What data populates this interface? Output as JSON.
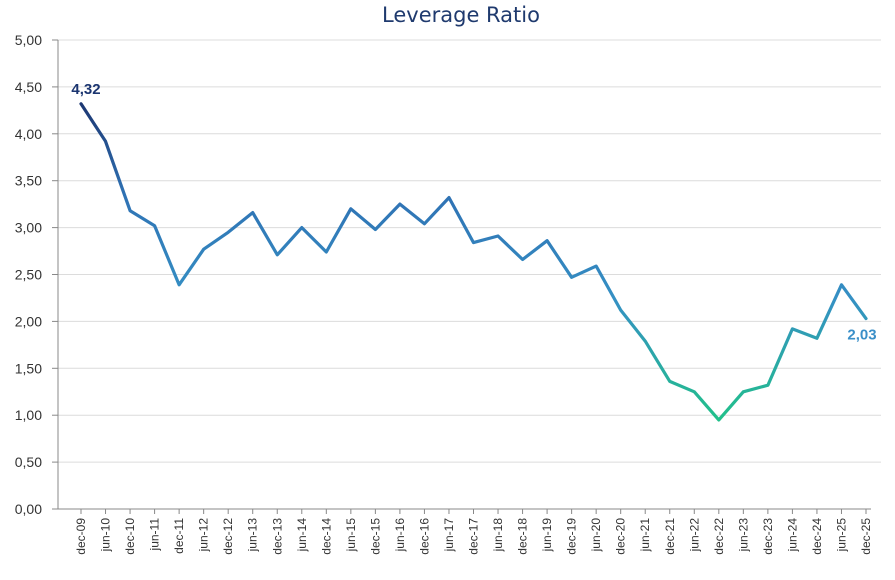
{
  "chart_data": {
    "type": "line",
    "title": "Leverage Ratio",
    "xlabel": "",
    "ylabel": "",
    "ylim": [
      0,
      5
    ],
    "yticks": [
      "0,00",
      "0,50",
      "1,00",
      "1,50",
      "2,00",
      "2,50",
      "3,00",
      "3,50",
      "4,00",
      "4,50",
      "5,00"
    ],
    "ytick_values": [
      0,
      0.5,
      1,
      1.5,
      2,
      2.5,
      3,
      3.5,
      4,
      4.5,
      5
    ],
    "grid": true,
    "legend": "none",
    "categories": [
      "dec-09",
      "jun-10",
      "dec-10",
      "jun-11",
      "dec-11",
      "jun-12",
      "dec-12",
      "jun-13",
      "dec-13",
      "jun-14",
      "dec-14",
      "jun-15",
      "dec-15",
      "jun-16",
      "dec-16",
      "jun-17",
      "dec-17",
      "jun-18",
      "dec-18",
      "jun-19",
      "dec-19",
      "jun-20",
      "dec-20",
      "jun-21",
      "dec-21",
      "jun-22",
      "dec-22",
      "jun-23",
      "dec-23",
      "jun-24",
      "dec-24",
      "jun-25",
      "dec-25"
    ],
    "series": [
      {
        "name": "Leverage Ratio",
        "values": [
          4.32,
          3.92,
          3.18,
          3.02,
          2.39,
          2.77,
          2.95,
          3.16,
          2.71,
          3.0,
          2.74,
          3.2,
          2.98,
          3.25,
          3.04,
          3.32,
          2.84,
          2.91,
          2.66,
          2.86,
          2.47,
          2.59,
          2.12,
          1.79,
          1.36,
          1.25,
          0.95,
          1.25,
          1.32,
          1.92,
          1.82,
          2.39,
          2.03
        ]
      }
    ],
    "annotations": [
      {
        "category": "dec-09",
        "text": "4,32",
        "color": "#1b3570"
      },
      {
        "category": "dec-25",
        "text": "2,03",
        "color": "#3a8fc8"
      }
    ],
    "colors": {
      "start": "#1b3570",
      "mid": "#2f7fc0",
      "low": "#27b78e",
      "end": "#3a97c9"
    }
  }
}
